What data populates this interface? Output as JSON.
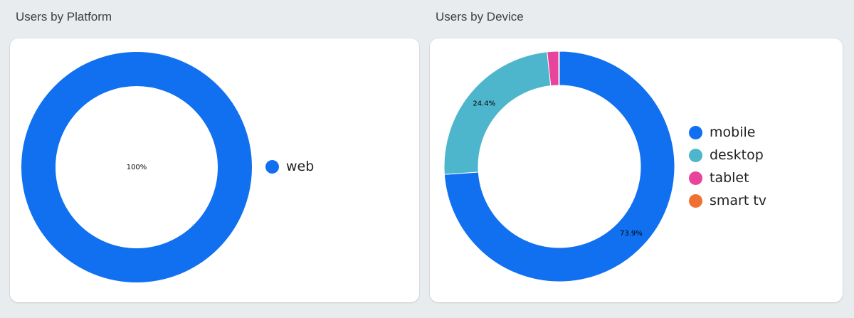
{
  "chart_data": [
    {
      "type": "pie",
      "title": "Users by Platform",
      "categories": [
        "web"
      ],
      "values": [
        100
      ],
      "value_labels": [
        "100%"
      ],
      "colors": [
        "#1170ef"
      ],
      "legend": "right"
    },
    {
      "type": "pie",
      "title": "Users by Device",
      "categories": [
        "mobile",
        "desktop",
        "tablet",
        "smart tv"
      ],
      "values": [
        73.9,
        24.4,
        1.6,
        0.1
      ],
      "value_labels": [
        "73.9%",
        "24.4%",
        "",
        ""
      ],
      "colors": [
        "#1170ef",
        "#4db6cc",
        "#e8449c",
        "#f07032"
      ],
      "legend": "right"
    }
  ]
}
